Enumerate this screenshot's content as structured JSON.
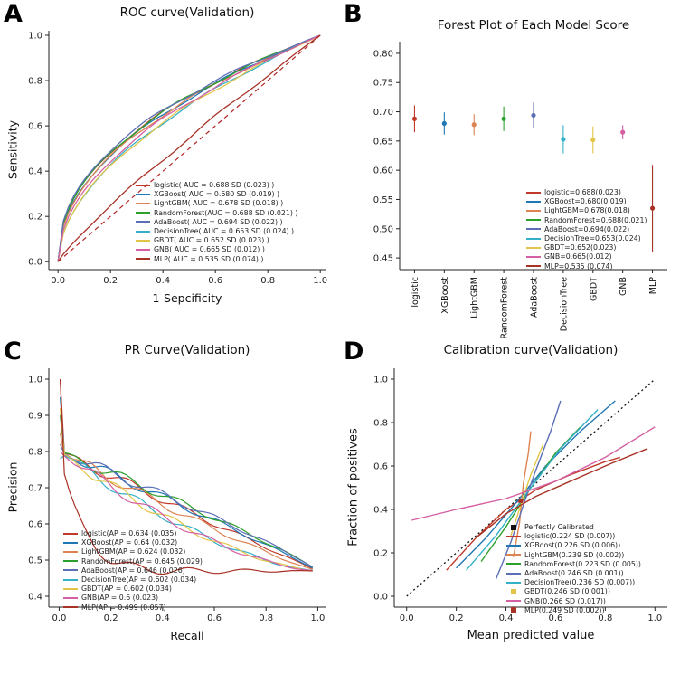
{
  "figure": {
    "background": "#ffffff"
  },
  "chart_data": [
    {
      "id": "roc",
      "letter": "A",
      "type": "roc",
      "title": "ROC  curve(Validation)",
      "xlabel": "1-Sepcificity",
      "ylabel": "Sensitivity",
      "xlim": [
        -0.035,
        1.02
      ],
      "ylim": [
        -0.035,
        1.02
      ],
      "xticks": [
        0.0,
        0.2,
        0.4,
        0.6,
        0.8,
        1.0
      ],
      "yticks": [
        0.0,
        0.2,
        0.4,
        0.6,
        0.8,
        1.0
      ],
      "xtick_decimals": 1,
      "ytick_decimals": 1,
      "legend_position": "lower-right",
      "diagonal": {
        "color": "#b22222",
        "style": "dashed"
      },
      "series": [
        {
          "name": "logistic",
          "auc": 0.688,
          "sd": 0.023,
          "color": "#c0392b",
          "label": "logistic( AUC = 0.688  SD (0.023) )"
        },
        {
          "name": "XGBoost",
          "auc": 0.68,
          "sd": 0.019,
          "color": "#1f77b4",
          "label": "XGBoost( AUC = 0.680  SD (0.019) )"
        },
        {
          "name": "LightGBM",
          "auc": 0.678,
          "sd": 0.018,
          "color": "#dd8452",
          "label": "LightGBM( AUC = 0.678  SD (0.018) )"
        },
        {
          "name": "RandomForest",
          "auc": 0.688,
          "sd": 0.021,
          "color": "#2ca02c",
          "label": "RandomForest(AUC = 0.688  SD (0.021) )"
        },
        {
          "name": "AdaBoost",
          "auc": 0.694,
          "sd": 0.022,
          "color": "#5c6fb5",
          "label": "AdaBoost( AUC = 0.694  SD (0.022) )"
        },
        {
          "name": "DecisionTree",
          "auc": 0.653,
          "sd": 0.024,
          "color": "#35b0c9",
          "label": "DecisionTree( AUC = 0.653  SD (0.024) )"
        },
        {
          "name": "GBDT",
          "auc": 0.652,
          "sd": 0.023,
          "color": "#e2c548",
          "label": "GBDT( AUC = 0.652  SD (0.023) )"
        },
        {
          "name": "GNB",
          "auc": 0.665,
          "sd": 0.012,
          "color": "#d45fa2",
          "label": "GNB( AUC = 0.665  SD (0.012) )"
        },
        {
          "name": "MLP",
          "auc": 0.535,
          "sd": 0.074,
          "color": "#a93226",
          "label": "MLP( AUC = 0.535  SD (0.074) )"
        }
      ]
    },
    {
      "id": "forest",
      "letter": "B",
      "type": "forest",
      "title": "Forest Plot of Each Model Score",
      "ylim": [
        0.43,
        0.82
      ],
      "yticks": [
        0.45,
        0.5,
        0.55,
        0.6,
        0.65,
        0.7,
        0.75,
        0.8
      ],
      "ytick_decimals": 2,
      "legend_position": "lower-right",
      "categories": [
        "logistic",
        "XGBoost",
        "LightGBM",
        "RandomForest",
        "AdaBoost",
        "DecisionTree",
        "GBDT",
        "GNB",
        "MLP"
      ],
      "series": [
        {
          "name": "logistic",
          "value": 0.688,
          "sd": 0.023,
          "color": "#c0392b",
          "label": "logistic=0.688(0.023)"
        },
        {
          "name": "XGBoost",
          "value": 0.68,
          "sd": 0.019,
          "color": "#1f77b4",
          "label": "XGBoost=0.680(0.019)"
        },
        {
          "name": "LightGBM",
          "value": 0.678,
          "sd": 0.018,
          "color": "#dd8452",
          "label": "LightGBM=0.678(0.018)"
        },
        {
          "name": "RandomForest",
          "value": 0.688,
          "sd": 0.021,
          "color": "#2ca02c",
          "label": "RandomForest=0.688(0.021)"
        },
        {
          "name": "AdaBoost",
          "value": 0.694,
          "sd": 0.022,
          "color": "#5c6fb5",
          "label": "AdaBoost=0.694(0.022)"
        },
        {
          "name": "DecisionTree",
          "value": 0.653,
          "sd": 0.024,
          "color": "#35b0c9",
          "label": "DecisionTree=0.653(0.024)"
        },
        {
          "name": "GBDT",
          "value": 0.652,
          "sd": 0.023,
          "color": "#e2c548",
          "label": "GBDT=0.652(0.023)"
        },
        {
          "name": "GNB",
          "value": 0.665,
          "sd": 0.012,
          "color": "#d45fa2",
          "label": "GNB=0.665(0.012)"
        },
        {
          "name": "MLP",
          "value": 0.535,
          "sd": 0.074,
          "color": "#a93226",
          "label": "MLP=0.535 (0.074)"
        }
      ]
    },
    {
      "id": "pr",
      "letter": "C",
      "type": "pr",
      "title": "PR Curve(Validation)",
      "xlabel": "Recall",
      "ylabel": "Precision",
      "xlim": [
        -0.04,
        1.03
      ],
      "ylim": [
        0.37,
        1.03
      ],
      "xticks": [
        0.0,
        0.2,
        0.4,
        0.6,
        0.8,
        1.0
      ],
      "yticks": [
        0.4,
        0.5,
        0.6,
        0.7,
        0.8,
        0.9,
        1.0
      ],
      "xtick_decimals": 1,
      "ytick_decimals": 1,
      "legend_position": "lower-left",
      "baseline": 0.47,
      "bundle_start": 0.8,
      "start_peaks": [
        1.0,
        0.95,
        0.85,
        0.9,
        0.82,
        0.78,
        0.92,
        0.8,
        1.0
      ],
      "series": [
        {
          "name": "logistic",
          "ap": 0.634,
          "sd": 0.035,
          "color": "#c0392b",
          "label": "logistic(AP = 0.634  (0.035)"
        },
        {
          "name": "XGBoost",
          "ap": 0.64,
          "sd": 0.032,
          "color": "#1f77b4",
          "label": "XGBoost(AP = 0.64  (0.032)"
        },
        {
          "name": "LightGBM",
          "ap": 0.624,
          "sd": 0.032,
          "color": "#dd8452",
          "label": "LightGBM(AP = 0.624  (0.032)"
        },
        {
          "name": "RandomForest",
          "ap": 0.645,
          "sd": 0.029,
          "color": "#2ca02c",
          "label": "RandomForest(AP = 0.645  (0.029)"
        },
        {
          "name": "AdaBoost",
          "ap": 0.646,
          "sd": 0.026,
          "color": "#5c6fb5",
          "label": "AdaBoost(AP = 0.646  (0.026)"
        },
        {
          "name": "DecisionTree",
          "ap": 0.602,
          "sd": 0.034,
          "color": "#35b0c9",
          "label": "DecisionTree(AP = 0.602  (0.034)"
        },
        {
          "name": "GBDT",
          "ap": 0.602,
          "sd": 0.034,
          "color": "#e2c548",
          "label": "GBDT(AP = 0.602  (0.034)"
        },
        {
          "name": "GNB",
          "ap": 0.6,
          "sd": 0.023,
          "color": "#d45fa2",
          "label": "GNB(AP = 0.6  (0.023)"
        },
        {
          "name": "MLP",
          "ap": 0.499,
          "sd": 0.057,
          "color": "#a93226",
          "label": "MLP(AP = 0.499  (0.057)"
        }
      ]
    },
    {
      "id": "cal",
      "letter": "D",
      "type": "calibration",
      "title": "Calibration curve(Validation)",
      "xlabel": "Mean predicted value",
      "ylabel": "Fraction of positives",
      "xlim": [
        -0.05,
        1.05
      ],
      "ylim": [
        -0.05,
        1.05
      ],
      "xticks": [
        0.0,
        0.2,
        0.4,
        0.6,
        0.8,
        1.0
      ],
      "yticks": [
        0.0,
        0.2,
        0.4,
        0.6,
        0.8,
        1.0
      ],
      "xtick_decimals": 1,
      "ytick_decimals": 1,
      "legend_position": "center-right",
      "reference": {
        "label": "Perfectly Calibrated",
        "color": "#111111",
        "style": "dotted",
        "marker": "square"
      },
      "marker_point": {
        "x": 0.46,
        "y": 0.44,
        "color": "#a93226"
      },
      "series": [
        {
          "name": "logistic",
          "score": 0.224,
          "sd": 0.007,
          "color": "#c0392b",
          "label": "logistic(0.224  SD (0.007))",
          "points": [
            [
              0.16,
              0.12
            ],
            [
              0.28,
              0.27
            ],
            [
              0.4,
              0.4
            ],
            [
              0.52,
              0.49
            ],
            [
              0.66,
              0.56
            ],
            [
              0.8,
              0.62
            ],
            [
              0.86,
              0.64
            ]
          ]
        },
        {
          "name": "XGBoost",
          "score": 0.226,
          "sd": 0.006,
          "color": "#1f77b4",
          "label": "XGBoost(0.226  SD (0.006))",
          "points": [
            [
              0.2,
              0.13
            ],
            [
              0.32,
              0.27
            ],
            [
              0.44,
              0.43
            ],
            [
              0.56,
              0.6
            ],
            [
              0.7,
              0.76
            ],
            [
              0.84,
              0.9
            ]
          ]
        },
        {
          "name": "LightGBM",
          "score": 0.239,
          "sd": 0.002,
          "color": "#dd8452",
          "label": "LightGBM(0.239  SD (0.002))",
          "points": [
            [
              0.43,
              0.18
            ],
            [
              0.455,
              0.34
            ],
            [
              0.47,
              0.52
            ],
            [
              0.49,
              0.66
            ],
            [
              0.5,
              0.76
            ]
          ]
        },
        {
          "name": "RandomForest",
          "score": 0.223,
          "sd": 0.005,
          "color": "#2ca02c",
          "label": "RandomForest(0.223  SD (0.005))",
          "points": [
            [
              0.3,
              0.16
            ],
            [
              0.4,
              0.32
            ],
            [
              0.5,
              0.5
            ],
            [
              0.6,
              0.66
            ],
            [
              0.7,
              0.78
            ]
          ]
        },
        {
          "name": "AdaBoost",
          "score": 0.246,
          "sd": 0.001,
          "color": "#5c6fb5",
          "label": "AdaBoost(0.246  SD (0.001))",
          "points": [
            [
              0.36,
              0.08
            ],
            [
              0.42,
              0.25
            ],
            [
              0.47,
              0.42
            ],
            [
              0.52,
              0.58
            ],
            [
              0.58,
              0.76
            ],
            [
              0.62,
              0.9
            ]
          ]
        },
        {
          "name": "DecisionTree",
          "score": 0.236,
          "sd": 0.007,
          "color": "#35b0c9",
          "label": "DecisionTree(0.236  SD (0.007))",
          "points": [
            [
              0.24,
              0.12
            ],
            [
              0.36,
              0.28
            ],
            [
              0.48,
              0.47
            ],
            [
              0.62,
              0.68
            ],
            [
              0.77,
              0.86
            ]
          ]
        },
        {
          "name": "GBDT",
          "score": 0.246,
          "sd": 0.001,
          "color": "#e2c548",
          "label": "GBDT(0.246  SD (0.001))",
          "marker": "square",
          "points": [
            [
              0.42,
              0.28
            ],
            [
              0.46,
              0.42
            ],
            [
              0.5,
              0.56
            ],
            [
              0.55,
              0.7
            ]
          ]
        },
        {
          "name": "GNB",
          "score": 0.266,
          "sd": 0.017,
          "color": "#d45fa2",
          "label": "GNB(0.266  SD (0.017))",
          "points": [
            [
              0.02,
              0.35
            ],
            [
              0.2,
              0.4
            ],
            [
              0.4,
              0.45
            ],
            [
              0.6,
              0.53
            ],
            [
              0.8,
              0.64
            ],
            [
              1.0,
              0.78
            ]
          ]
        },
        {
          "name": "MLP",
          "score": 0.249,
          "sd": 0.002,
          "color": "#a93226",
          "label": "MLP(0.249  SD (0.002))",
          "marker": "square",
          "points": [
            [
              0.28,
              0.27
            ],
            [
              0.4,
              0.38
            ],
            [
              0.52,
              0.46
            ],
            [
              0.66,
              0.53
            ],
            [
              0.82,
              0.61
            ],
            [
              0.97,
              0.68
            ]
          ]
        }
      ]
    }
  ]
}
